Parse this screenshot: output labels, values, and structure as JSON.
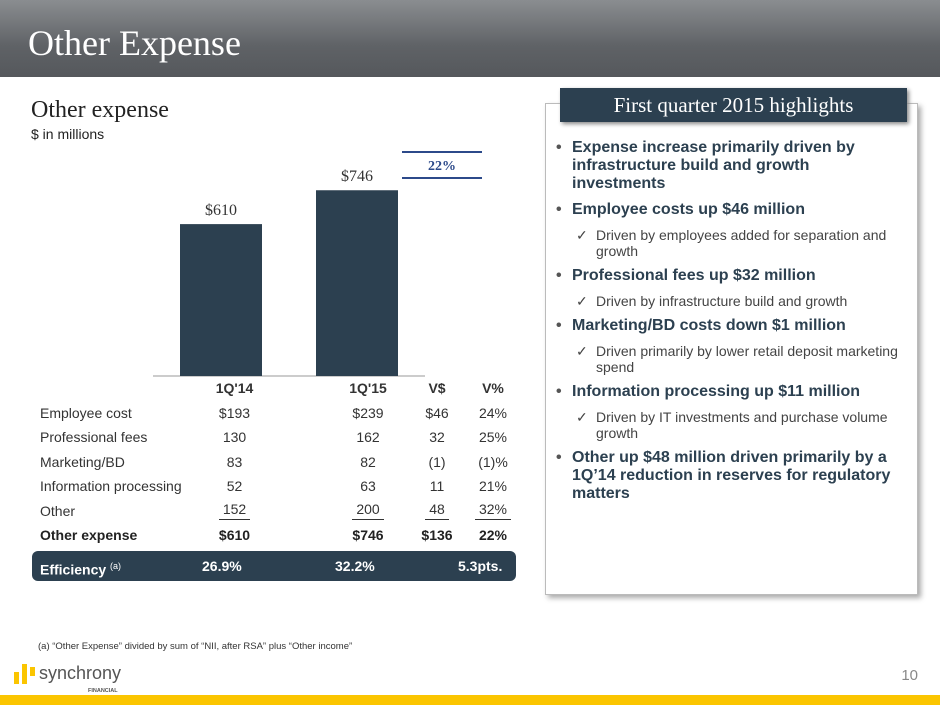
{
  "title": "Other Expense",
  "subtitle": "Other expense",
  "unit": "$ in millions",
  "chart_data": {
    "type": "bar",
    "categories": [
      "1Q'14",
      "1Q'15"
    ],
    "values": [
      610,
      746
    ],
    "data_labels": [
      "$610",
      "$746"
    ],
    "growth_label": "22%",
    "color": "#2c4050"
  },
  "table": {
    "headers": [
      "",
      "1Q'14",
      "1Q'15",
      "V$",
      "V%"
    ],
    "rows": [
      [
        "Employee cost",
        "$193",
        "$239",
        "$46",
        "24%"
      ],
      [
        "Professional fees",
        "130",
        "162",
        "32",
        "25%"
      ],
      [
        "Marketing/BD",
        "83",
        "82",
        "(1)",
        "(1)%"
      ],
      [
        "Information processing",
        "52",
        "63",
        "11",
        "21%"
      ],
      [
        "Other",
        "152",
        "200",
        "48",
        "32%"
      ]
    ],
    "total": [
      "Other expense",
      "$610",
      "$746",
      "$136",
      "22%"
    ],
    "efficiency": {
      "label": "Efficiency",
      "note": "(a)",
      "q14": "26.9%",
      "q15": "32.2%",
      "change": "5.3pts."
    }
  },
  "footnote": "(a) “Other Expense” divided by sum of “NII, after RSA” plus “Other income”",
  "logo": {
    "name": "synchrony",
    "tag": "FINANCIAL"
  },
  "page_number": "10",
  "highlights": {
    "title": "First quarter 2015 highlights",
    "items": [
      {
        "t": "m",
        "text": "Expense increase primarily driven by infrastructure build and growth investments"
      },
      {
        "t": "m",
        "text": "Employee costs up $46 million"
      },
      {
        "t": "s",
        "text": "Driven by employees added for separation and growth"
      },
      {
        "t": "m",
        "text": "Professional fees up $32 million"
      },
      {
        "t": "s",
        "text": "Driven by infrastructure build and growth"
      },
      {
        "t": "m",
        "text": "Marketing/BD costs down $1 million"
      },
      {
        "t": "s",
        "text": "Driven primarily by lower retail deposit marketing spend"
      },
      {
        "t": "m",
        "text": "Information processing up $11 million"
      },
      {
        "t": "s",
        "text": "Driven by IT investments and purchase volume growth"
      },
      {
        "t": "m",
        "text": "Other up $48 million driven primarily by a 1Q’14 reduction in reserves for regulatory matters"
      }
    ]
  }
}
